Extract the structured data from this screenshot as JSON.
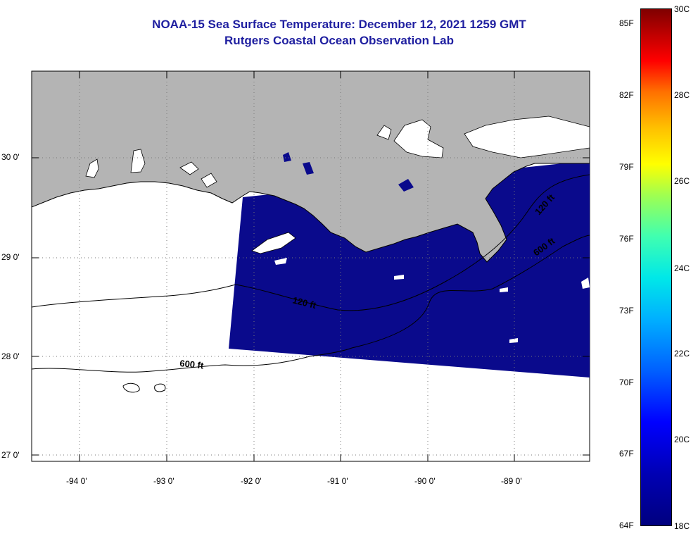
{
  "title": {
    "line1": "NOAA-15 Sea Surface Temperature:  December 12, 2021 1259 GMT",
    "line2": "Rutgers Coastal Ocean Observation Lab"
  },
  "axes": {
    "lon_labels": [
      "-94 0'",
      "-93 0'",
      "-92 0'",
      "-91 0'",
      "-90 0'",
      "-89 0'"
    ],
    "lat_labels": [
      "30 0'",
      "29 0'",
      "28 0'",
      "27 0'"
    ]
  },
  "contours": {
    "label_120_west": "120 ft",
    "label_600_west": "600 ft",
    "label_120_east": "120 ft",
    "label_600_east": "600 ft"
  },
  "colors": {
    "land": "#b4b4b4",
    "sst_uniform": "#0a0a8c",
    "title": "#1f1fa0"
  },
  "colorbar": {
    "f_labels": [
      "85F",
      "82F",
      "79F",
      "76F",
      "73F",
      "70F",
      "67F",
      "64F"
    ],
    "c_labels": [
      "30C",
      "28C",
      "26C",
      "24C",
      "22C",
      "20C",
      "18C"
    ]
  }
}
